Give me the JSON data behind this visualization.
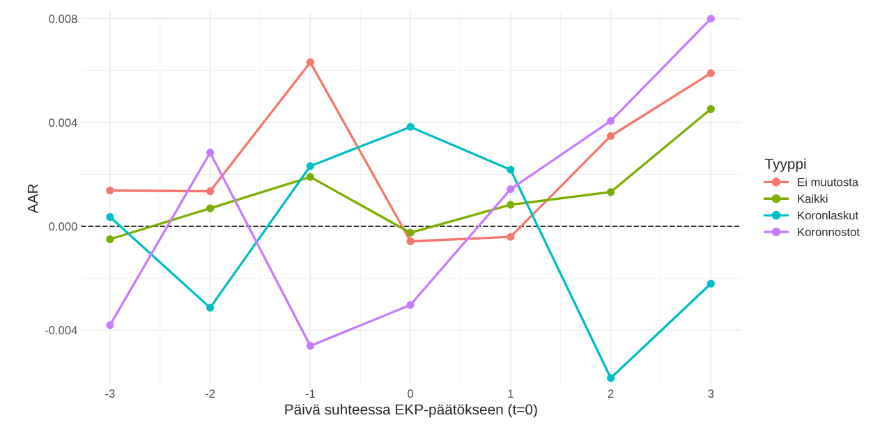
{
  "chart_data": {
    "type": "line",
    "xlabel": "Päivä suhteessa EKP-päätökseen (t=0)",
    "ylabel": "AAR",
    "legend_title": "Tyyppi",
    "legend": "right",
    "marker": "circle",
    "line_style": "solid",
    "grid": true,
    "x": [
      -3,
      -2,
      -1,
      0,
      1,
      2,
      3
    ],
    "series": [
      {
        "name": "Ei muutosta",
        "color": "#f8766d",
        "values": [
          0.00138,
          0.00135,
          0.00632,
          -0.00058,
          -0.00041,
          0.00348,
          0.0059
        ]
      },
      {
        "name": "Kaikki",
        "color": "#7cae00",
        "values": [
          -0.0005,
          0.00069,
          0.0019,
          -0.00025,
          0.00083,
          0.00132,
          0.00452
        ]
      },
      {
        "name": "Koronlaskut",
        "color": "#00bfc4",
        "values": [
          0.00036,
          -0.00314,
          0.00232,
          0.00383,
          0.00218,
          -0.00585,
          -0.00221
        ]
      },
      {
        "name": "Koronnostot",
        "color": "#c77cff",
        "values": [
          -0.00381,
          0.00284,
          -0.00461,
          -0.00303,
          0.00143,
          0.00406,
          0.008
        ]
      }
    ],
    "xlim": [
      -3.29,
      3.3
    ],
    "xticks": [
      -3,
      -2,
      -1,
      0,
      1,
      2,
      3
    ],
    "ylim": [
      -0.00615,
      0.0083
    ],
    "yticks": [
      {
        "value": -0.004,
        "label": "-0.004"
      },
      {
        "value": 0,
        "label": "0.000"
      },
      {
        "value": 0.004,
        "label": "0.004"
      },
      {
        "value": 0.008,
        "label": "0.008"
      }
    ],
    "ref_lines": [
      {
        "axis": "y",
        "value": 0,
        "color": "#000000",
        "line_style": "dashed"
      }
    ]
  }
}
